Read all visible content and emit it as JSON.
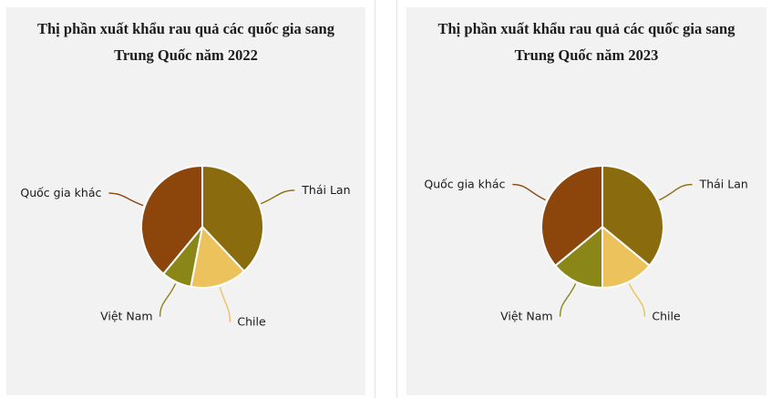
{
  "ui": {
    "page_background": "#ffffff",
    "panel_background": "#f2f2f2",
    "card_divider_color": "#e5e5e5",
    "title_color": "#1b1b1b",
    "label_color": "#1a1a1a",
    "slice_border_color": "#ffffff"
  },
  "chart_data": [
    {
      "type": "pie",
      "title": "Thị phần xuất khẩu rau quả các quốc gia sang Trung Quốc năm 2022",
      "unit": "%",
      "start_angle": "top",
      "direction": "clockwise",
      "labels_position": "outside-with-connectors",
      "legend_position": "none",
      "slices": [
        {
          "id": "thai-lan",
          "label": "Thái Lan",
          "value": 38,
          "color": "#8A6B0E"
        },
        {
          "id": "chile",
          "label": "Chile",
          "value": 15,
          "color": "#ECC25C"
        },
        {
          "id": "viet-nam",
          "label": "Việt Nam",
          "value": 8,
          "color": "#8A8618"
        },
        {
          "id": "quoc-gia-khac",
          "label": "Quốc gia khác",
          "value": 39,
          "color": "#8C450B"
        }
      ]
    },
    {
      "type": "pie",
      "title": "Thị phần xuất khẩu rau quả các quốc gia sang Trung Quốc năm 2023",
      "unit": "%",
      "start_angle": "top",
      "direction": "clockwise",
      "labels_position": "outside-with-connectors",
      "legend_position": "none",
      "slices": [
        {
          "id": "thai-lan",
          "label": "Thái Lan",
          "value": 36,
          "color": "#8A6B0E"
        },
        {
          "id": "chile",
          "label": "Chile",
          "value": 14,
          "color": "#ECC25C"
        },
        {
          "id": "viet-nam",
          "label": "Việt Nam",
          "value": 14,
          "color": "#8A8618"
        },
        {
          "id": "quoc-gia-khac",
          "label": "Quốc gia khác",
          "value": 36,
          "color": "#8C450B"
        }
      ]
    }
  ]
}
